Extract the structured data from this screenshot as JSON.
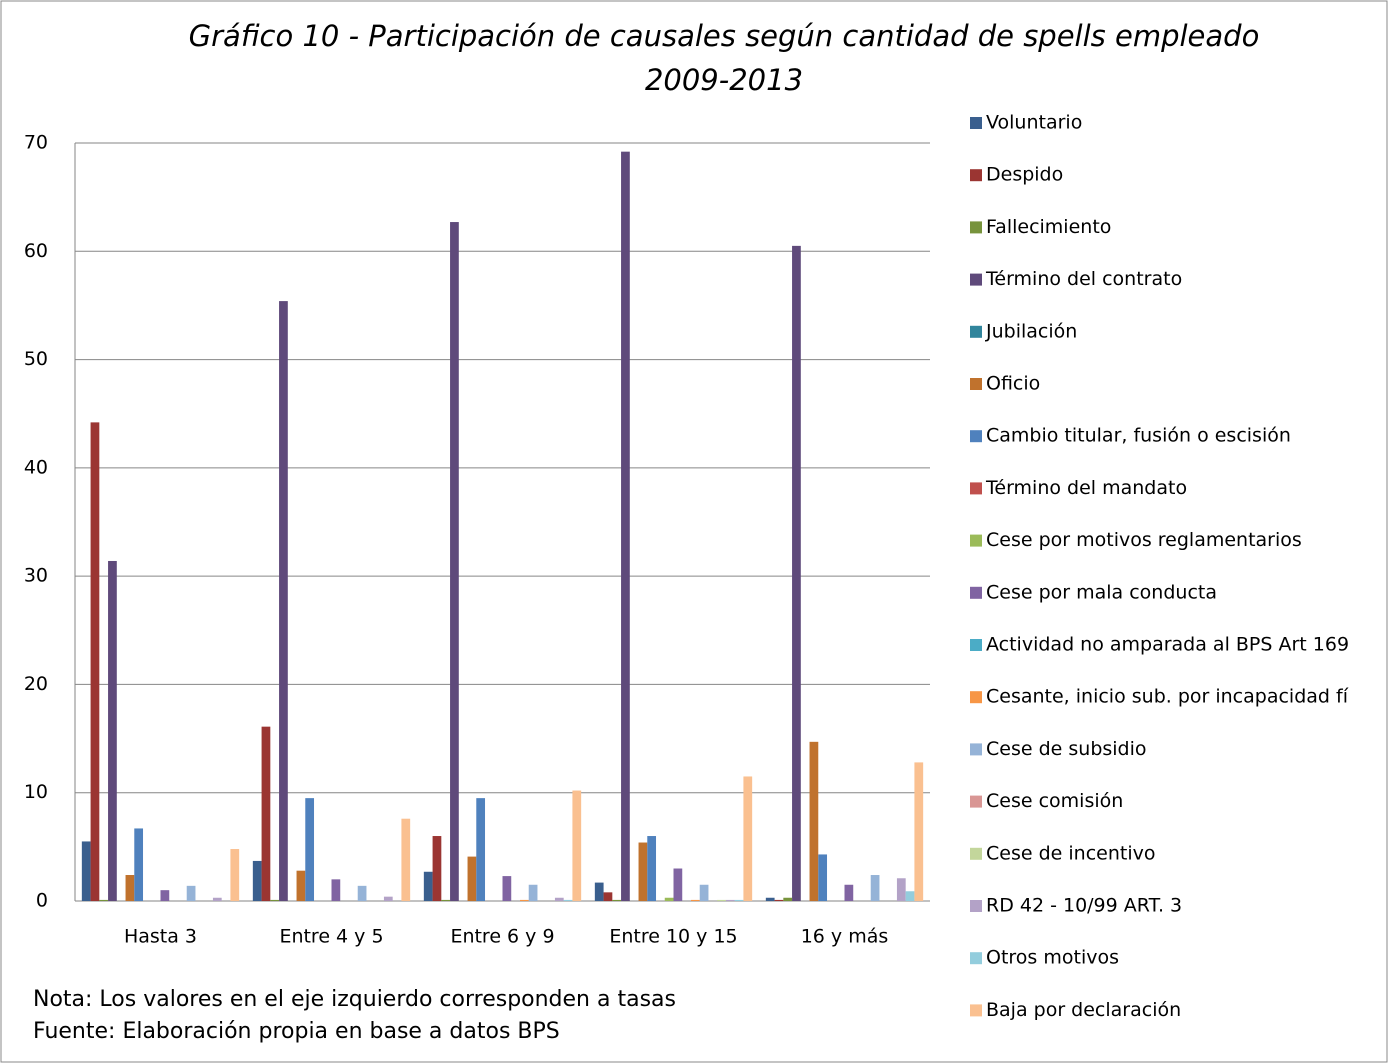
{
  "chart_data": {
    "type": "bar",
    "title": "Gráfico 10 - Participación de causales según cantidad de spells empleado",
    "subtitle": "2009-2013",
    "notes": [
      "Nota: Los valores en el eje izquierdo corresponden a tasas",
      "Fuente: Elaboración propia en base a datos BPS"
    ],
    "categories": [
      "Hasta 3",
      "Entre 4 y 5",
      "Entre 6 y 9",
      "Entre 10 y 15",
      "16 y más"
    ],
    "ylim": [
      0,
      70
    ],
    "yticks": [
      0,
      10,
      20,
      30,
      40,
      50,
      60,
      70
    ],
    "grid": true,
    "legend": "right",
    "series": [
      {
        "name": "Voluntario",
        "color": "#3a5f8e",
        "values": [
          5.5,
          3.7,
          2.7,
          1.7,
          0.3
        ]
      },
      {
        "name": "Despido",
        "color": "#9b3532",
        "values": [
          44.2,
          16.1,
          6.0,
          0.8,
          0.1
        ]
      },
      {
        "name": "Fallecimiento",
        "color": "#77933c",
        "values": [
          0.1,
          0.1,
          0.1,
          0.1,
          0.3
        ]
      },
      {
        "name": "Término del contrato",
        "color": "#5f4a7b",
        "values": [
          31.4,
          55.4,
          62.7,
          69.2,
          60.5
        ]
      },
      {
        "name": "Jubilación",
        "color": "#31859c",
        "values": [
          0,
          0,
          0,
          0,
          0
        ]
      },
      {
        "name": "Oficio",
        "color": "#c0722d",
        "values": [
          2.4,
          2.8,
          4.1,
          5.4,
          14.7
        ]
      },
      {
        "name": "Cambio titular, fusión o escisión",
        "color": "#4f81bd",
        "values": [
          6.7,
          9.5,
          9.5,
          6.0,
          4.3
        ]
      },
      {
        "name": "Término del mandato",
        "color": "#c0504d",
        "values": [
          0,
          0,
          0,
          0,
          0
        ]
      },
      {
        "name": "Cese por motivos reglamentarios",
        "color": "#9bbb59",
        "values": [
          0,
          0,
          0,
          0.3,
          0
        ]
      },
      {
        "name": "Cese por mala conducta",
        "color": "#8064a2",
        "values": [
          1.0,
          2.0,
          2.3,
          3.0,
          1.5
        ]
      },
      {
        "name": "Actividad no amparada al BPS Art 169",
        "color": "#4bacc6",
        "values": [
          0,
          0,
          0,
          0,
          0
        ]
      },
      {
        "name": "Cesante, inicio sub. por incapacidad fí",
        "color": "#f79646",
        "values": [
          0,
          0,
          0.1,
          0.1,
          0
        ]
      },
      {
        "name": "Cese de subsidio",
        "color": "#95b3d7",
        "values": [
          1.4,
          1.4,
          1.5,
          1.5,
          2.4
        ]
      },
      {
        "name": "Cese comisión",
        "color": "#d99694",
        "values": [
          0,
          0,
          0,
          0,
          0
        ]
      },
      {
        "name": "Cese de incentivo",
        "color": "#c3d69b",
        "values": [
          0,
          0,
          0,
          0.1,
          0
        ]
      },
      {
        "name": "RD 42 - 10/99 ART. 3",
        "color": "#b3a2c7",
        "values": [
          0.3,
          0.4,
          0.3,
          0.1,
          2.1
        ]
      },
      {
        "name": "Otros motivos",
        "color": "#93cddd",
        "values": [
          0,
          0,
          0.1,
          0.1,
          0.9
        ]
      },
      {
        "name": "Baja por declaración",
        "color": "#fac090",
        "values": [
          4.8,
          7.6,
          10.2,
          11.5,
          12.8
        ]
      }
    ]
  }
}
